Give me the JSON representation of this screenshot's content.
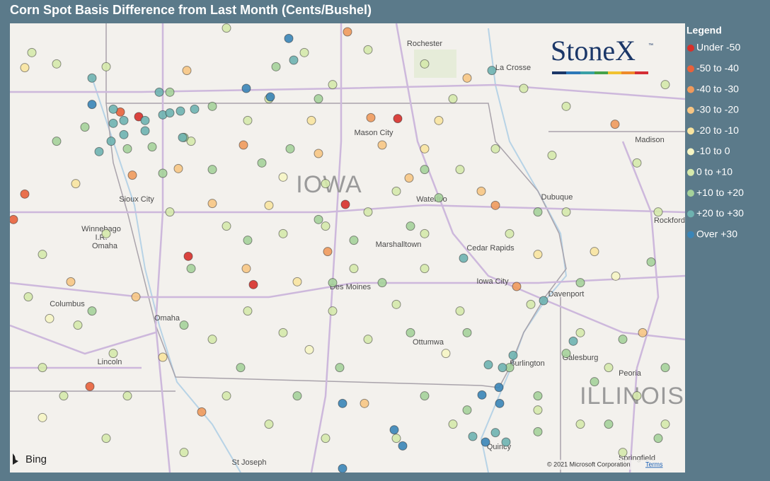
{
  "title": "Corn Spot Basis Difference from Last Month (Cents/Bushel)",
  "legend": {
    "title": "Legend",
    "entries": [
      {
        "name": "Under -50",
        "color": "#d7302a"
      },
      {
        "name": "-50 to -40",
        "color": "#e8623b"
      },
      {
        "name": "-40 to -30",
        "color": "#f09a5c"
      },
      {
        "name": "-30 to -20",
        "color": "#f7c684"
      },
      {
        "name": "-20 to -10",
        "color": "#f8e4a0"
      },
      {
        "name": "-10 to 0",
        "color": "#f6f5c4"
      },
      {
        "name": "0 to +10",
        "color": "#d5e9ab"
      },
      {
        "name": "+10 to +20",
        "color": "#a5d29a"
      },
      {
        "name": "+20 to +30",
        "color": "#6eb2b0"
      },
      {
        "name": "Over +30",
        "color": "#3a85b7"
      }
    ]
  },
  "logo": {
    "text": "StoneX",
    "mark": "™"
  },
  "attribution": {
    "bing": "Bing",
    "copyright": "© 2021 Microsoft Corporation",
    "terms": "Terms"
  },
  "map": {
    "labels": [
      "Rochester",
      "La Crosse",
      "Mason City",
      "IOWA",
      "Waterloo",
      "Dubuque",
      "Madison",
      "Sioux City",
      "Winnebago",
      "I.R.",
      "Omaha",
      "Marshalltown",
      "Cedar Rapids",
      "Rockford",
      "Des Moines",
      "Iowa City",
      "Davenport",
      "Columbus",
      "Omaha",
      "Lincoln",
      "Ottumwa",
      "Burlington",
      "Galesburg",
      "Peoria",
      "ILLINOIS",
      "Quincy",
      "St Joseph",
      "Springfield"
    ],
    "points": [
      {
        "lon": -92.72,
        "lat": 43.34,
        "bin": 0
      },
      {
        "lon": -96.38,
        "lat": 43.36,
        "bin": 0
      },
      {
        "lon": -93.46,
        "lat": 42.43,
        "bin": 0
      },
      {
        "lon": -95.68,
        "lat": 41.88,
        "bin": 0
      },
      {
        "lon": -94.76,
        "lat": 41.58,
        "bin": 0
      },
      {
        "lon": -96.64,
        "lat": 43.41,
        "bin": 1
      },
      {
        "lon": -97.07,
        "lat": 40.5,
        "bin": 1
      },
      {
        "lon": -97.99,
        "lat": 42.54,
        "bin": 1
      },
      {
        "lon": -98.15,
        "lat": 42.27,
        "bin": 1
      },
      {
        "lon": -93.43,
        "lat": 44.26,
        "bin": 2
      },
      {
        "lon": -93.1,
        "lat": 43.35,
        "bin": 2
      },
      {
        "lon": -96.47,
        "lat": 42.74,
        "bin": 2
      },
      {
        "lon": -89.65,
        "lat": 43.28,
        "bin": 2
      },
      {
        "lon": -94.9,
        "lat": 43.06,
        "bin": 2
      },
      {
        "lon": -93.71,
        "lat": 41.93,
        "bin": 2
      },
      {
        "lon": -91.34,
        "lat": 42.42,
        "bin": 2
      },
      {
        "lon": -91.04,
        "lat": 41.56,
        "bin": 2
      },
      {
        "lon": -95.49,
        "lat": 40.23,
        "bin": 2
      },
      {
        "lon": -95.82,
        "lat": 42.81,
        "bin": 3
      },
      {
        "lon": -94.86,
        "lat": 41.75,
        "bin": 3
      },
      {
        "lon": -93.84,
        "lat": 42.97,
        "bin": 3
      },
      {
        "lon": -97.34,
        "lat": 41.61,
        "bin": 3
      },
      {
        "lon": -92.56,
        "lat": 42.71,
        "bin": 3
      },
      {
        "lon": -95.7,
        "lat": 43.85,
        "bin": 3
      },
      {
        "lon": -91.54,
        "lat": 42.57,
        "bin": 3
      },
      {
        "lon": -93.19,
        "lat": 40.32,
        "bin": 3
      },
      {
        "lon": -92.94,
        "lat": 43.06,
        "bin": 3
      },
      {
        "lon": -91.74,
        "lat": 43.77,
        "bin": 3
      },
      {
        "lon": -96.42,
        "lat": 41.45,
        "bin": 3
      },
      {
        "lon": -95.34,
        "lat": 42.44,
        "bin": 3
      },
      {
        "lon": -89.26,
        "lat": 41.07,
        "bin": 3
      },
      {
        "lon": -97.99,
        "lat": 43.88,
        "bin": 4
      },
      {
        "lon": -97.27,
        "lat": 42.65,
        "bin": 4
      },
      {
        "lon": -94.14,
        "lat": 41.61,
        "bin": 4
      },
      {
        "lon": -96.04,
        "lat": 40.81,
        "bin": 4
      },
      {
        "lon": -94.54,
        "lat": 42.42,
        "bin": 4
      },
      {
        "lon": -92.34,
        "lat": 43.02,
        "bin": 4
      },
      {
        "lon": -92.14,
        "lat": 43.32,
        "bin": 4
      },
      {
        "lon": -89.94,
        "lat": 41.93,
        "bin": 4
      },
      {
        "lon": -90.74,
        "lat": 41.9,
        "bin": 4
      },
      {
        "lon": -93.94,
        "lat": 43.32,
        "bin": 4
      },
      {
        "lon": -93.97,
        "lat": 40.89,
        "bin": 5
      },
      {
        "lon": -97.64,
        "lat": 41.22,
        "bin": 5
      },
      {
        "lon": -92.04,
        "lat": 40.85,
        "bin": 5
      },
      {
        "lon": -94.34,
        "lat": 42.72,
        "bin": 5
      },
      {
        "lon": -89.64,
        "lat": 41.67,
        "bin": 5
      },
      {
        "lon": -97.74,
        "lat": 40.17,
        "bin": 5
      },
      {
        "lon": -97.89,
        "lat": 44.04,
        "bin": 6
      },
      {
        "lon": -97.54,
        "lat": 43.92,
        "bin": 6
      },
      {
        "lon": -96.84,
        "lat": 43.89,
        "bin": 6
      },
      {
        "lon": -95.14,
        "lat": 44.3,
        "bin": 6
      },
      {
        "lon": -94.04,
        "lat": 44.04,
        "bin": 6
      },
      {
        "lon": -93.14,
        "lat": 44.07,
        "bin": 6
      },
      {
        "lon": -92.34,
        "lat": 43.92,
        "bin": 6
      },
      {
        "lon": -90.94,
        "lat": 43.66,
        "bin": 6
      },
      {
        "lon": -90.34,
        "lat": 43.47,
        "bin": 6
      },
      {
        "lon": -89.34,
        "lat": 42.87,
        "bin": 6
      },
      {
        "lon": -88.94,
        "lat": 43.7,
        "bin": 6
      },
      {
        "lon": -89.04,
        "lat": 42.35,
        "bin": 6
      },
      {
        "lon": -90.54,
        "lat": 42.95,
        "bin": 6
      },
      {
        "lon": -91.34,
        "lat": 43.02,
        "bin": 6
      },
      {
        "lon": -91.84,
        "lat": 42.8,
        "bin": 6
      },
      {
        "lon": -92.74,
        "lat": 42.57,
        "bin": 6
      },
      {
        "lon": -93.14,
        "lat": 42.35,
        "bin": 6
      },
      {
        "lon": -93.74,
        "lat": 42.2,
        "bin": 6
      },
      {
        "lon": -94.34,
        "lat": 42.12,
        "bin": 6
      },
      {
        "lon": -95.14,
        "lat": 42.2,
        "bin": 6
      },
      {
        "lon": -95.94,
        "lat": 42.35,
        "bin": 6
      },
      {
        "lon": -96.84,
        "lat": 42.12,
        "bin": 6
      },
      {
        "lon": -97.74,
        "lat": 41.9,
        "bin": 6
      },
      {
        "lon": -97.94,
        "lat": 41.45,
        "bin": 6
      },
      {
        "lon": -97.24,
        "lat": 41.15,
        "bin": 6
      },
      {
        "lon": -96.74,
        "lat": 40.85,
        "bin": 6
      },
      {
        "lon": -97.74,
        "lat": 40.7,
        "bin": 6
      },
      {
        "lon": -97.44,
        "lat": 40.4,
        "bin": 6
      },
      {
        "lon": -96.54,
        "lat": 40.4,
        "bin": 6
      },
      {
        "lon": -95.34,
        "lat": 41.0,
        "bin": 6
      },
      {
        "lon": -94.84,
        "lat": 41.3,
        "bin": 6
      },
      {
        "lon": -94.34,
        "lat": 41.07,
        "bin": 6
      },
      {
        "lon": -93.64,
        "lat": 41.3,
        "bin": 6
      },
      {
        "lon": -93.14,
        "lat": 41.0,
        "bin": 6
      },
      {
        "lon": -92.74,
        "lat": 41.37,
        "bin": 6
      },
      {
        "lon": -92.34,
        "lat": 41.75,
        "bin": 6
      },
      {
        "lon": -91.84,
        "lat": 41.3,
        "bin": 6
      },
      {
        "lon": -90.84,
        "lat": 41.37,
        "bin": 6
      },
      {
        "lon": -90.14,
        "lat": 41.07,
        "bin": 6
      },
      {
        "lon": -89.74,
        "lat": 40.7,
        "bin": 6
      },
      {
        "lon": -89.34,
        "lat": 40.4,
        "bin": 6
      },
      {
        "lon": -88.94,
        "lat": 40.1,
        "bin": 6
      },
      {
        "lon": -89.54,
        "lat": 39.8,
        "bin": 6
      },
      {
        "lon": -90.14,
        "lat": 40.1,
        "bin": 6
      },
      {
        "lon": -90.74,
        "lat": 40.25,
        "bin": 6
      },
      {
        "lon": -91.94,
        "lat": 40.1,
        "bin": 6
      },
      {
        "lon": -92.74,
        "lat": 39.95,
        "bin": 6
      },
      {
        "lon": -93.74,
        "lat": 39.95,
        "bin": 6
      },
      {
        "lon": -94.54,
        "lat": 40.1,
        "bin": 6
      },
      {
        "lon": -95.14,
        "lat": 40.4,
        "bin": 6
      },
      {
        "lon": -95.74,
        "lat": 39.8,
        "bin": 6
      },
      {
        "lon": -96.84,
        "lat": 39.95,
        "bin": 6
      },
      {
        "lon": -92.34,
        "lat": 42.12,
        "bin": 6
      },
      {
        "lon": -91.14,
        "lat": 42.12,
        "bin": 6
      },
      {
        "lon": -90.34,
        "lat": 42.35,
        "bin": 6
      },
      {
        "lon": -94.84,
        "lat": 43.32,
        "bin": 6
      },
      {
        "lon": -95.64,
        "lat": 43.1,
        "bin": 6
      },
      {
        "lon": -94.54,
        "lat": 43.55,
        "bin": 6
      },
      {
        "lon": -93.64,
        "lat": 43.7,
        "bin": 6
      },
      {
        "lon": -91.94,
        "lat": 43.55,
        "bin": 6
      },
      {
        "lon": -93.74,
        "lat": 42.65,
        "bin": 6
      },
      {
        "lon": -93.34,
        "lat": 41.75,
        "bin": 6
      },
      {
        "lon": -96.04,
        "lat": 42.76,
        "bin": 7
      },
      {
        "lon": -95.34,
        "lat": 42.8,
        "bin": 7
      },
      {
        "lon": -94.64,
        "lat": 42.87,
        "bin": 7
      },
      {
        "lon": -94.24,
        "lat": 43.02,
        "bin": 7
      },
      {
        "lon": -93.84,
        "lat": 42.27,
        "bin": 7
      },
      {
        "lon": -93.34,
        "lat": 42.05,
        "bin": 7
      },
      {
        "lon": -92.54,
        "lat": 42.2,
        "bin": 7
      },
      {
        "lon": -92.14,
        "lat": 42.5,
        "bin": 7
      },
      {
        "lon": -92.94,
        "lat": 41.6,
        "bin": 7
      },
      {
        "lon": -92.54,
        "lat": 41.07,
        "bin": 7
      },
      {
        "lon": -91.74,
        "lat": 41.07,
        "bin": 7
      },
      {
        "lon": -91.14,
        "lat": 40.7,
        "bin": 7
      },
      {
        "lon": -90.74,
        "lat": 40.4,
        "bin": 7
      },
      {
        "lon": -90.34,
        "lat": 40.85,
        "bin": 7
      },
      {
        "lon": -89.94,
        "lat": 40.55,
        "bin": 7
      },
      {
        "lon": -89.54,
        "lat": 41.0,
        "bin": 7
      },
      {
        "lon": -89.14,
        "lat": 41.82,
        "bin": 7
      },
      {
        "lon": -88.94,
        "lat": 40.7,
        "bin": 7
      },
      {
        "lon": -89.04,
        "lat": 39.95,
        "bin": 7
      },
      {
        "lon": -89.74,
        "lat": 40.1,
        "bin": 7
      },
      {
        "lon": -90.74,
        "lat": 40.02,
        "bin": 7
      },
      {
        "lon": -91.74,
        "lat": 40.25,
        "bin": 7
      },
      {
        "lon": -92.34,
        "lat": 40.4,
        "bin": 7
      },
      {
        "lon": -93.54,
        "lat": 40.7,
        "bin": 7
      },
      {
        "lon": -94.14,
        "lat": 40.4,
        "bin": 7
      },
      {
        "lon": -94.94,
        "lat": 40.7,
        "bin": 7
      },
      {
        "lon": -95.74,
        "lat": 41.15,
        "bin": 7
      },
      {
        "lon": -97.04,
        "lat": 41.3,
        "bin": 7
      },
      {
        "lon": -95.94,
        "lat": 43.62,
        "bin": 7
      },
      {
        "lon": -95.34,
        "lat": 43.47,
        "bin": 7
      },
      {
        "lon": -94.44,
        "lat": 43.89,
        "bin": 7
      },
      {
        "lon": -93.84,
        "lat": 43.55,
        "bin": 7
      },
      {
        "lon": -92.34,
        "lat": 42.8,
        "bin": 7
      },
      {
        "lon": -90.74,
        "lat": 42.35,
        "bin": 7
      },
      {
        "lon": -90.14,
        "lat": 41.6,
        "bin": 7
      },
      {
        "lon": -93.64,
        "lat": 41.6,
        "bin": 7
      },
      {
        "lon": -94.84,
        "lat": 42.05,
        "bin": 7
      },
      {
        "lon": -95.64,
        "lat": 41.75,
        "bin": 7
      },
      {
        "lon": -97.14,
        "lat": 43.25,
        "bin": 7
      },
      {
        "lon": -97.54,
        "lat": 43.1,
        "bin": 7
      },
      {
        "lon": -96.54,
        "lat": 43.02,
        "bin": 7
      },
      {
        "lon": -96.19,
        "lat": 43.04,
        "bin": 7
      },
      {
        "lon": -95.74,
        "lat": 43.14,
        "bin": 7
      },
      {
        "lon": -96.74,
        "lat": 43.44,
        "bin": 8
      },
      {
        "lon": -96.59,
        "lat": 43.32,
        "bin": 8
      },
      {
        "lon": -96.74,
        "lat": 43.29,
        "bin": 8
      },
      {
        "lon": -96.59,
        "lat": 43.17,
        "bin": 8
      },
      {
        "lon": -96.94,
        "lat": 42.99,
        "bin": 8
      },
      {
        "lon": -96.77,
        "lat": 43.1,
        "bin": 8
      },
      {
        "lon": -96.29,
        "lat": 43.32,
        "bin": 8
      },
      {
        "lon": -96.04,
        "lat": 43.38,
        "bin": 8
      },
      {
        "lon": -95.79,
        "lat": 43.42,
        "bin": 8
      },
      {
        "lon": -95.59,
        "lat": 43.44,
        "bin": 8
      },
      {
        "lon": -95.76,
        "lat": 43.14,
        "bin": 8
      },
      {
        "lon": -96.09,
        "lat": 43.62,
        "bin": 8
      },
      {
        "lon": -97.04,
        "lat": 43.77,
        "bin": 8
      },
      {
        "lon": -91.44,
        "lat": 40.73,
        "bin": 8
      },
      {
        "lon": -91.09,
        "lat": 40.83,
        "bin": 8
      },
      {
        "lon": -91.24,
        "lat": 40.7,
        "bin": 8
      },
      {
        "lon": -91.66,
        "lat": 39.97,
        "bin": 8
      },
      {
        "lon": -91.34,
        "lat": 40.01,
        "bin": 8
      },
      {
        "lon": -91.79,
        "lat": 41.86,
        "bin": 8
      },
      {
        "lon": -91.19,
        "lat": 39.91,
        "bin": 8
      },
      {
        "lon": -90.24,
        "lat": 40.98,
        "bin": 8
      },
      {
        "lon": -90.66,
        "lat": 41.41,
        "bin": 8
      },
      {
        "lon": -96.29,
        "lat": 43.21,
        "bin": 8
      },
      {
        "lon": -95.94,
        "lat": 43.4,
        "bin": 8
      },
      {
        "lon": -91.39,
        "lat": 43.85,
        "bin": 8
      },
      {
        "lon": -94.19,
        "lat": 43.96,
        "bin": 8
      },
      {
        "lon": -94.86,
        "lat": 43.66,
        "bin": 9
      },
      {
        "lon": -94.52,
        "lat": 43.57,
        "bin": 9
      },
      {
        "lon": -94.26,
        "lat": 44.19,
        "bin": 9
      },
      {
        "lon": -93.5,
        "lat": 40.32,
        "bin": 9
      },
      {
        "lon": -92.77,
        "lat": 40.04,
        "bin": 9
      },
      {
        "lon": -92.65,
        "lat": 39.87,
        "bin": 9
      },
      {
        "lon": -91.53,
        "lat": 40.41,
        "bin": 9
      },
      {
        "lon": -91.29,
        "lat": 40.49,
        "bin": 9
      },
      {
        "lon": -91.28,
        "lat": 40.32,
        "bin": 9
      },
      {
        "lon": -93.5,
        "lat": 39.63,
        "bin": 9
      },
      {
        "lon": -91.48,
        "lat": 39.91,
        "bin": 9
      },
      {
        "lon": -97.04,
        "lat": 43.49,
        "bin": 9
      }
    ]
  }
}
